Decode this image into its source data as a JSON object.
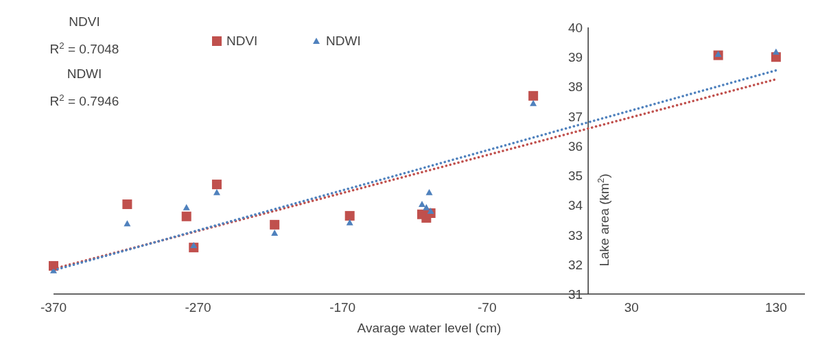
{
  "chart_data": {
    "type": "scatter",
    "xlabel": "Avarage water level (cm)",
    "ylabel": "Lake area (km$^{2}$)",
    "xlim": [
      -370,
      150
    ],
    "xticks": [
      -370,
      -270,
      -170,
      -70,
      30,
      130
    ],
    "ylim": [
      31,
      40
    ],
    "yticks": [
      31,
      32,
      33,
      34,
      35,
      36,
      37,
      38,
      39,
      40
    ],
    "grid": false,
    "legend": "top",
    "annotations": [
      "NDVI",
      "R$^{2}$ = 0.7048",
      "NDWI",
      "R$^{2}$ = 0.7946"
    ],
    "series": [
      {
        "name": "NDVI",
        "color": "#c0504d",
        "marker": "square",
        "x": [
          -370,
          -319,
          -278,
          -273,
          -257,
          -217,
          -165,
          -115,
          -112,
          -109,
          -38,
          90,
          130
        ],
        "values": [
          31.95,
          34.03,
          33.62,
          32.57,
          34.7,
          33.34,
          33.64,
          33.69,
          33.57,
          33.73,
          37.69,
          39.06,
          39.0
        ]
      },
      {
        "name": "NDWI",
        "color": "#4f81bd",
        "marker": "triangle",
        "x": [
          -370,
          -319,
          -278,
          -273,
          -257,
          -217,
          -165,
          -115,
          -112,
          -110,
          -109,
          -38,
          90,
          130
        ],
        "values": [
          31.79,
          33.38,
          33.92,
          32.64,
          34.43,
          33.06,
          33.41,
          34.03,
          33.92,
          34.43,
          33.8,
          37.44,
          39.1,
          39.17
        ]
      },
      {
        "type": "line",
        "color": "#c0504d",
        "marker": "none",
        "line_style": "dotted",
        "x": [
          -370,
          130
        ],
        "values": [
          31.85,
          38.25
        ]
      },
      {
        "type": "line",
        "color": "#4f81bd",
        "marker": "none",
        "line_style": "dotted",
        "x": [
          -370,
          130
        ],
        "values": [
          31.8,
          38.55
        ]
      }
    ]
  }
}
